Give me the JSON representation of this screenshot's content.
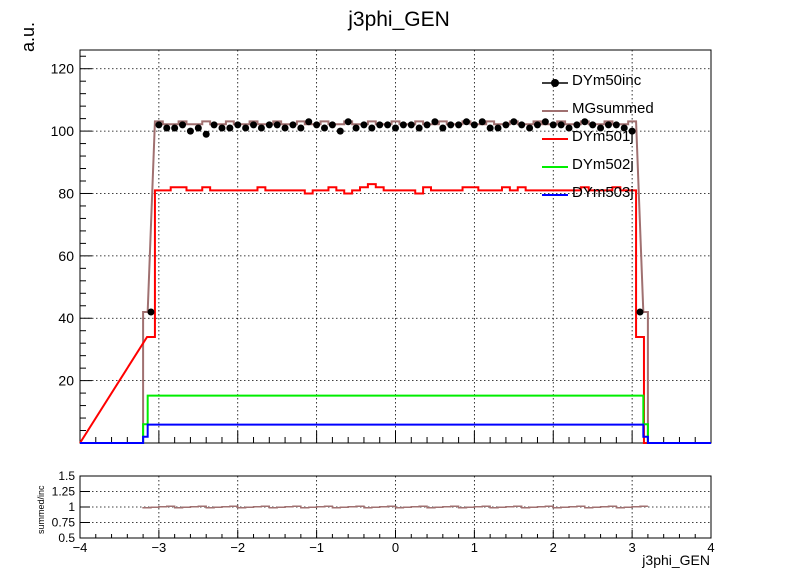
{
  "title": "j3phi_GEN",
  "ylabel": "a.u.",
  "ratio_ylabel": "summed/inc",
  "xlabel": "j3phi_GEN",
  "legend": [
    {
      "label": "DYm50inc",
      "color": "#000000",
      "style": "marker"
    },
    {
      "label": "MGsummed",
      "color": "#a07070",
      "style": "line"
    },
    {
      "label": "DYm501j",
      "color": "#ff0000",
      "style": "line"
    },
    {
      "label": "DYm502j",
      "color": "#00ee00",
      "style": "line"
    },
    {
      "label": "DYm503j",
      "color": "#0000ff",
      "style": "line"
    }
  ],
  "chart_data": [
    {
      "type": "line",
      "subtype": "histogram",
      "title": "j3phi_GEN",
      "ylabel": "a.u.",
      "xlim": [
        -4,
        4
      ],
      "ylim": [
        0,
        126
      ],
      "xticks": [
        -4,
        -3,
        -2,
        -1,
        0,
        1,
        2,
        3,
        4
      ],
      "yticks": [
        20,
        40,
        60,
        80,
        100,
        120
      ],
      "grid": true,
      "legend_position": "top-right",
      "series": [
        {
          "name": "DYm50inc",
          "color": "#000000",
          "style": "marker",
          "x": [
            -3.1,
            -3.0,
            -2.9,
            -2.8,
            -2.7,
            -2.6,
            -2.5,
            -2.4,
            -2.3,
            -2.2,
            -2.1,
            -2.0,
            -1.9,
            -1.8,
            -1.7,
            -1.6,
            -1.5,
            -1.4,
            -1.3,
            -1.2,
            -1.1,
            -1.0,
            -0.9,
            -0.8,
            -0.7,
            -0.6,
            -0.5,
            -0.4,
            -0.3,
            -0.2,
            -0.1,
            0.0,
            0.1,
            0.2,
            0.3,
            0.4,
            0.5,
            0.6,
            0.7,
            0.8,
            0.9,
            1.0,
            1.1,
            1.2,
            1.3,
            1.4,
            1.5,
            1.6,
            1.7,
            1.8,
            1.9,
            2.0,
            2.1,
            2.2,
            2.3,
            2.4,
            2.5,
            2.6,
            2.7,
            2.8,
            2.9,
            3.0,
            3.1
          ],
          "y": [
            42,
            102,
            101,
            101,
            102,
            100,
            101,
            99,
            102,
            101,
            101,
            102,
            101,
            102,
            101,
            102,
            102,
            101,
            102,
            101,
            103,
            102,
            101,
            102,
            100,
            103,
            101,
            102,
            101,
            102,
            102,
            101,
            102,
            102,
            101,
            102,
            103,
            101,
            102,
            102,
            103,
            102,
            103,
            101,
            101,
            102,
            103,
            102,
            101,
            102,
            103,
            102,
            102,
            101,
            102,
            103,
            102,
            101,
            102,
            102,
            101,
            100,
            42
          ]
        },
        {
          "name": "MGsummed",
          "color": "#a07070",
          "style": "line",
          "edges": [
            -4.0,
            -3.2,
            -3.142,
            3.142,
            3.2,
            4.0
          ],
          "values": [
            0,
            42,
            102.8,
            42,
            0
          ]
        },
        {
          "name": "DYm501j",
          "color": "#ff0000",
          "style": "line",
          "x": [
            -3.1,
            -3.0,
            -2.9,
            -2.8,
            -2.7,
            -2.6,
            -2.5,
            -2.4,
            -2.3,
            -2.2,
            -2.1,
            -2.0,
            -1.9,
            -1.8,
            -1.7,
            -1.6,
            -1.5,
            -1.4,
            -1.3,
            -1.2,
            -1.1,
            -1.0,
            -0.9,
            -0.8,
            -0.7,
            -0.6,
            -0.5,
            -0.4,
            -0.3,
            -0.2,
            -0.1,
            0.0,
            0.1,
            0.2,
            0.3,
            0.4,
            0.5,
            0.6,
            0.7,
            0.8,
            0.9,
            1.0,
            1.1,
            1.2,
            1.3,
            1.4,
            1.5,
            1.6,
            1.7,
            1.8,
            1.9,
            2.0,
            2.1,
            2.2,
            2.3,
            2.4,
            2.5,
            2.6,
            2.7,
            2.8,
            2.9,
            3.0,
            3.1
          ],
          "y": [
            34,
            81,
            81,
            82,
            82,
            81,
            81,
            82,
            81,
            81,
            81,
            81,
            81,
            81,
            82,
            81,
            81,
            81,
            81,
            81,
            80,
            81,
            81,
            82,
            81,
            80,
            81,
            82,
            83,
            82,
            81,
            81,
            81,
            81,
            80,
            82,
            81,
            81,
            81,
            81,
            82,
            82,
            81,
            81,
            81,
            82,
            81,
            82,
            81,
            81,
            81,
            81,
            81,
            81,
            81,
            82,
            81,
            81,
            81,
            82,
            81,
            81,
            34
          ]
        },
        {
          "name": "DYm502j",
          "color": "#00ee00",
          "style": "line",
          "edges": [
            -4.0,
            -3.2,
            -3.142,
            3.142,
            3.2,
            4.0
          ],
          "values": [
            0,
            6,
            15.2,
            6,
            0
          ]
        },
        {
          "name": "DYm503j",
          "color": "#0000ff",
          "style": "line",
          "edges": [
            -4.0,
            -3.2,
            -3.142,
            3.142,
            3.2,
            4.0
          ],
          "values": [
            0,
            2,
            5.9,
            2,
            0
          ]
        }
      ]
    },
    {
      "type": "line",
      "subtype": "ratio",
      "xlabel": "j3phi_GEN",
      "ylabel": "summed/inc",
      "xlim": [
        -4,
        4
      ],
      "ylim": [
        0.5,
        1.5
      ],
      "xticks": [
        -4,
        -3,
        -2,
        -1,
        0,
        1,
        2,
        3,
        4
      ],
      "yticks": [
        0.5,
        0.75,
        1,
        1.25,
        1.5
      ],
      "ytick_labels": [
        "0.5",
        "0.75",
        "1",
        "1.25",
        "1.5"
      ],
      "grid": true,
      "series": [
        {
          "name": "",
          "color": "#a07070",
          "x_range": [
            -3.2,
            3.2
          ],
          "value": 1.0
        }
      ]
    }
  ]
}
